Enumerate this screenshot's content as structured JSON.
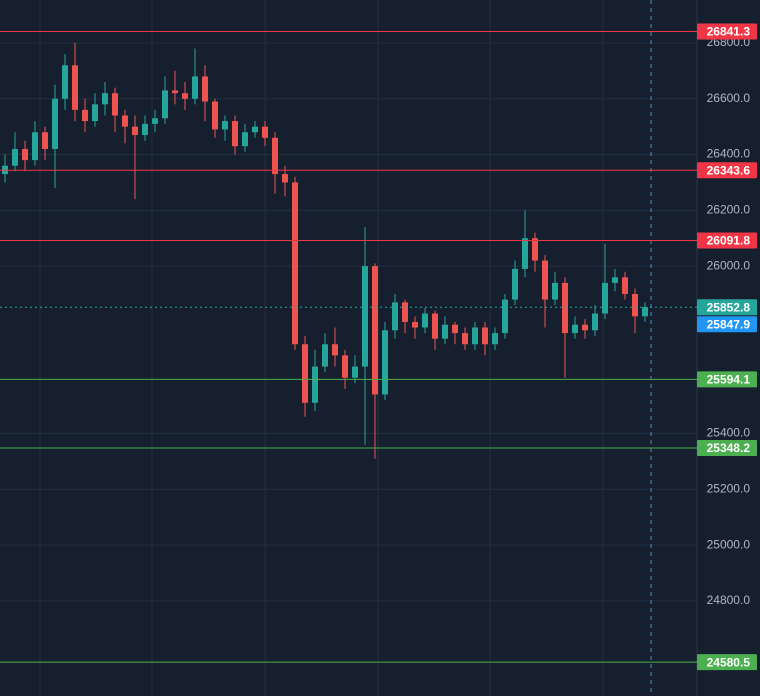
{
  "chart_data": {
    "type": "candlestick",
    "ylim": [
      24459,
      26954
    ],
    "yticks": [
      {
        "value": 24800,
        "label": "24800.0"
      },
      {
        "value": 25000,
        "label": "25000.0"
      },
      {
        "value": 25200,
        "label": "25200.0"
      },
      {
        "value": 25400,
        "label": "25400.0"
      },
      {
        "value": 26000,
        "label": "26000.0"
      },
      {
        "value": 26200,
        "label": "26200.0"
      },
      {
        "value": 26400,
        "label": "26400.0"
      },
      {
        "value": 26600,
        "label": "26600.0"
      },
      {
        "value": 26800,
        "label": "26800.0"
      }
    ],
    "grid": true,
    "up_color": "#26a69a",
    "down_color": "#ef5350",
    "open": [
      26330,
      26360,
      26420,
      26380,
      26480,
      26420,
      26600,
      26720,
      26560,
      26520,
      26580,
      26620,
      26540,
      26500,
      26470,
      26510,
      26530,
      26630,
      26620,
      26600,
      26680,
      26590,
      26490,
      26520,
      26430,
      26480,
      26500,
      26460,
      26330,
      26300,
      25720,
      25510,
      25640,
      25720,
      25680,
      25600,
      25640,
      26000,
      25540,
      25770,
      25870,
      25800,
      25780,
      25830,
      25740,
      25790,
      25760,
      25720,
      25780,
      25720,
      25760,
      25880,
      25990,
      26100,
      26020,
      25880,
      25940,
      25760,
      25790,
      25770,
      25830,
      25940,
      25960,
      25900,
      25820
    ],
    "high": [
      26400,
      26480,
      26450,
      26520,
      26500,
      26650,
      26760,
      26800,
      26600,
      26620,
      26660,
      26640,
      26560,
      26540,
      26540,
      26560,
      26680,
      26700,
      26660,
      26780,
      26720,
      26600,
      26540,
      26540,
      26510,
      26520,
      26520,
      26480,
      26360,
      26320,
      25750,
      25700,
      25760,
      25780,
      25700,
      25680,
      26140,
      26010,
      25800,
      25900,
      25880,
      25820,
      25850,
      25840,
      25820,
      25800,
      25780,
      25800,
      25800,
      25780,
      25900,
      26020,
      26200,
      26120,
      26040,
      25980,
      25960,
      25820,
      25810,
      25860,
      26080,
      25990,
      25980,
      25920,
      25870
    ],
    "low": [
      26300,
      26340,
      26340,
      26360,
      26380,
      26280,
      26560,
      26520,
      26480,
      26500,
      26540,
      26480,
      26440,
      26240,
      26450,
      26480,
      26510,
      26580,
      26560,
      26580,
      26520,
      26460,
      26450,
      26400,
      26410,
      26460,
      26430,
      26260,
      26250,
      25700,
      25460,
      25480,
      25620,
      25640,
      25560,
      25580,
      25360,
      25310,
      25520,
      25740,
      25760,
      25740,
      25760,
      25700,
      25720,
      25720,
      25700,
      25700,
      25680,
      25700,
      25740,
      25860,
      25960,
      25980,
      25780,
      25860,
      25600,
      25740,
      25740,
      25750,
      25810,
      25910,
      25880,
      25760,
      25800
    ],
    "close": [
      26360,
      26420,
      26380,
      26480,
      26420,
      26600,
      26720,
      26560,
      26520,
      26580,
      26620,
      26540,
      26500,
      26470,
      26510,
      26530,
      26630,
      26620,
      26600,
      26680,
      26590,
      26490,
      26520,
      26430,
      26480,
      26500,
      26460,
      26330,
      26300,
      25720,
      25510,
      25640,
      25720,
      25680,
      25600,
      25640,
      26000,
      25540,
      25770,
      25870,
      25800,
      25780,
      25830,
      25740,
      25790,
      25760,
      25720,
      25780,
      25720,
      25760,
      25880,
      25990,
      26100,
      26020,
      25880,
      25940,
      25760,
      25790,
      25770,
      25830,
      25940,
      25960,
      25900,
      25820,
      25852.8
    ],
    "levels": [
      {
        "value": 26841.3,
        "color": "#f23645"
      },
      {
        "value": 26343.6,
        "color": "#f23645"
      },
      {
        "value": 26091.8,
        "color": "#f23645"
      },
      {
        "value": 25594.1,
        "color": "#4caf50"
      },
      {
        "value": 25348.2,
        "color": "#4caf50"
      },
      {
        "value": 24580.5,
        "color": "#4caf50"
      }
    ],
    "current_price": 25852.8,
    "current_color": "#26a69a",
    "marker_price": 25847.9,
    "marker_color": "#2196f3"
  }
}
